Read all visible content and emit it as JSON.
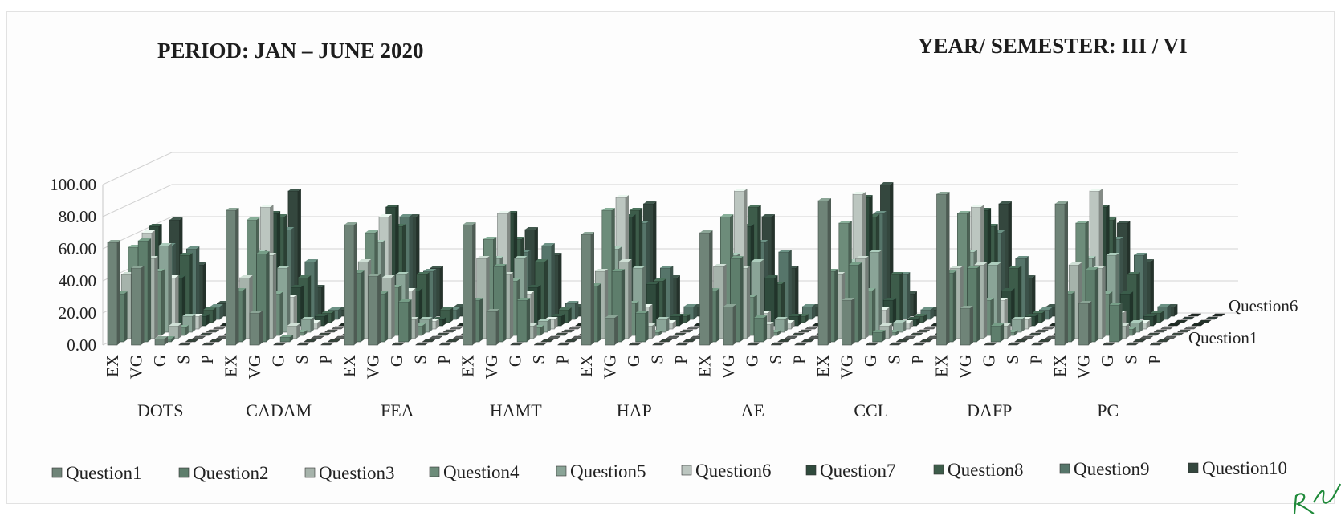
{
  "header": {
    "period": "PERIOD: JAN – JUNE 2020",
    "semester": "YEAR/ SEMESTER: III / VI"
  },
  "signature": "R Ahmed",
  "colors": {
    "Question1": "#6f8478",
    "Question2": "#5e7e6c",
    "Question3": "#a6b3ab",
    "Question4": "#6d8c7a",
    "Question5": "#8aa497",
    "Question6": "#bcc6c0",
    "Question7": "#2f4a3c",
    "Question8": "#3d5c4a",
    "Question9": "#56756a",
    "Question10": "#34473e"
  },
  "chart_data": {
    "type": "bar",
    "style": "3d-clustered-column",
    "xlabel": "",
    "ylabel": "",
    "ylim": [
      0,
      100
    ],
    "yticks": [
      "0.00",
      "20.00",
      "40.00",
      "60.00",
      "80.00",
      "100.00"
    ],
    "grid": true,
    "legend_position": "bottom",
    "subjects": [
      "DOTS",
      "CADAM",
      "FEA",
      "HAMT",
      "HAP",
      "AE",
      "CCL",
      "DAFP",
      "PC"
    ],
    "ratings": [
      "EX",
      "VG",
      "G",
      "S",
      "P"
    ],
    "depth_labels_shown": [
      "Question6",
      "Question1"
    ],
    "series": [
      {
        "name": "Question1",
        "values": [
          [
            64,
            48,
            4,
            0,
            0
          ],
          [
            84,
            20,
            0,
            0,
            0
          ],
          [
            75,
            43,
            0,
            0,
            0
          ],
          [
            75,
            21,
            0,
            0,
            0
          ],
          [
            69,
            17,
            0,
            0,
            0
          ],
          [
            70,
            24,
            0,
            0,
            0
          ],
          [
            90,
            28,
            0,
            0,
            0
          ],
          [
            94,
            23,
            0,
            0,
            0
          ],
          [
            88,
            26,
            0,
            0,
            0
          ]
        ]
      },
      {
        "name": "Question2",
        "values": [
          [
            30,
            63,
            2,
            0,
            0
          ],
          [
            32,
            55,
            3,
            0,
            0
          ],
          [
            43,
            30,
            25,
            0,
            0
          ],
          [
            26,
            47,
            26,
            0,
            0
          ],
          [
            35,
            44,
            18,
            0,
            0
          ],
          [
            32,
            52,
            15,
            0,
            0
          ],
          [
            44,
            48,
            6,
            0,
            0
          ],
          [
            43,
            46,
            10,
            0,
            0
          ],
          [
            30,
            45,
            23,
            0,
            0
          ]
        ]
      },
      {
        "name": "Question3",
        "values": [
          [
            40,
            50,
            8,
            0,
            0
          ],
          [
            38,
            52,
            8,
            0,
            0
          ],
          [
            48,
            38,
            12,
            0,
            0
          ],
          [
            50,
            40,
            8,
            0,
            0
          ],
          [
            42,
            48,
            8,
            0,
            0
          ],
          [
            45,
            44,
            9,
            0,
            0
          ],
          [
            40,
            50,
            8,
            0,
            0
          ],
          [
            44,
            46,
            8,
            0,
            0
          ],
          [
            46,
            44,
            8,
            0,
            0
          ]
        ]
      },
      {
        "name": "Question4",
        "values": [
          [
            55,
            40,
            5,
            0,
            0
          ],
          [
            72,
            26,
            2,
            0,
            0
          ],
          [
            64,
            30,
            6,
            0,
            0
          ],
          [
            60,
            34,
            5,
            0,
            0
          ],
          [
            78,
            20,
            2,
            0,
            0
          ],
          [
            74,
            24,
            2,
            0,
            0
          ],
          [
            70,
            28,
            2,
            0,
            0
          ],
          [
            76,
            22,
            2,
            0,
            0
          ],
          [
            70,
            26,
            4,
            0,
            0
          ]
        ]
      },
      {
        "name": "Question5",
        "values": [
          [
            36,
            54,
            10,
            0,
            0
          ],
          [
            50,
            40,
            8,
            0,
            0
          ],
          [
            56,
            36,
            8,
            0,
            0
          ],
          [
            46,
            46,
            7,
            0,
            0
          ],
          [
            52,
            40,
            8,
            0,
            0
          ],
          [
            48,
            44,
            8,
            0,
            0
          ],
          [
            44,
            50,
            6,
            0,
            0
          ],
          [
            50,
            42,
            8,
            0,
            0
          ],
          [
            46,
            48,
            6,
            0,
            0
          ]
        ]
      },
      {
        "name": "Question6",
        "values": [
          [
            60,
            32,
            8,
            0,
            0
          ],
          [
            76,
            20,
            4,
            0,
            0
          ],
          [
            70,
            24,
            5,
            0,
            0
          ],
          [
            72,
            22,
            6,
            0,
            0
          ],
          [
            82,
            14,
            4,
            0,
            0
          ],
          [
            86,
            10,
            4,
            0,
            0
          ],
          [
            84,
            12,
            4,
            0,
            0
          ],
          [
            76,
            18,
            6,
            0,
            0
          ],
          [
            86,
            10,
            4,
            0,
            0
          ]
        ]
      },
      {
        "name": "Question7",
        "values": [
          [
            62,
            30,
            6,
            0,
            0
          ],
          [
            70,
            24,
            6,
            0,
            0
          ],
          [
            74,
            22,
            4,
            0,
            0
          ],
          [
            70,
            24,
            6,
            0,
            0
          ],
          [
            68,
            26,
            6,
            0,
            0
          ],
          [
            62,
            30,
            6,
            0,
            0
          ],
          [
            80,
            16,
            4,
            0,
            0
          ],
          [
            72,
            22,
            6,
            0,
            0
          ],
          [
            74,
            20,
            6,
            0,
            0
          ]
        ]
      },
      {
        "name": "Question8",
        "values": [
          [
            48,
            42,
            8,
            0,
            0
          ],
          [
            66,
            28,
            6,
            0,
            0
          ],
          [
            60,
            30,
            8,
            0,
            0
          ],
          [
            52,
            38,
            8,
            0,
            0
          ],
          [
            70,
            26,
            4,
            0,
            0
          ],
          [
            72,
            24,
            4,
            0,
            0
          ],
          [
            66,
            30,
            4,
            0,
            0
          ],
          [
            60,
            34,
            6,
            0,
            0
          ],
          [
            64,
            30,
            6,
            0,
            0
          ]
        ]
      },
      {
        "name": "Question9",
        "values": [
          [
            46,
            44,
            8,
            0,
            0
          ],
          [
            56,
            36,
            6,
            0,
            0
          ],
          [
            64,
            30,
            6,
            0,
            0
          ],
          [
            42,
            46,
            10,
            0,
            0
          ],
          [
            60,
            32,
            8,
            0,
            0
          ],
          [
            48,
            42,
            8,
            0,
            0
          ],
          [
            66,
            28,
            6,
            0,
            0
          ],
          [
            54,
            38,
            6,
            0,
            0
          ],
          [
            50,
            40,
            8,
            0,
            0
          ]
        ]
      },
      {
        "name": "Question10",
        "values": [
          [
            60,
            32,
            8,
            0,
            0
          ],
          [
            78,
            18,
            4,
            0,
            0
          ],
          [
            62,
            30,
            6,
            0,
            0
          ],
          [
            54,
            38,
            6,
            0,
            0
          ],
          [
            70,
            24,
            6,
            0,
            0
          ],
          [
            62,
            30,
            6,
            0,
            0
          ],
          [
            82,
            14,
            4,
            0,
            0
          ],
          [
            70,
            24,
            6,
            0,
            0
          ],
          [
            58,
            34,
            6,
            0,
            0
          ]
        ]
      }
    ]
  }
}
